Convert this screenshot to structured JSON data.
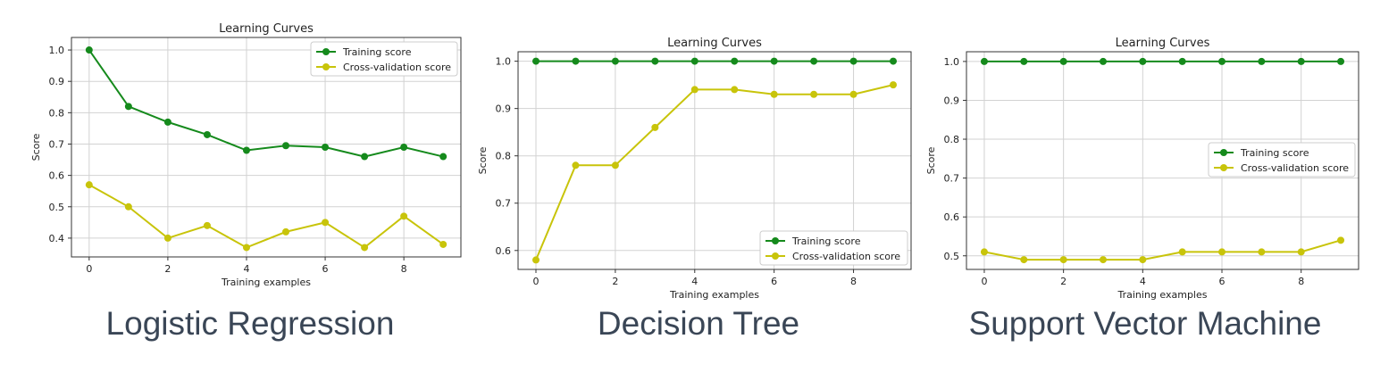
{
  "colors": {
    "training": "#158a1c",
    "cv": "#c8c40a"
  },
  "chart_data": [
    {
      "type": "line",
      "title": "Learning Curves",
      "xlabel": "Training examples",
      "ylabel": "Score",
      "caption": "Logistic Regression",
      "x": [
        0,
        1,
        2,
        3,
        4,
        5,
        6,
        7,
        8,
        9
      ],
      "xlim": [
        -0.45,
        9.45
      ],
      "ylim": [
        0.34,
        1.04
      ],
      "xticks": [
        0,
        2,
        4,
        6,
        8
      ],
      "yticks": [
        0.4,
        0.5,
        0.6,
        0.7,
        0.8,
        0.9,
        1.0
      ],
      "grid": true,
      "legend": "top-right",
      "series": [
        {
          "name": "Training score",
          "values": [
            1.0,
            0.82,
            0.77,
            0.73,
            0.68,
            0.695,
            0.69,
            0.66,
            0.69,
            0.66
          ]
        },
        {
          "name": "Cross-validation score",
          "values": [
            0.57,
            0.5,
            0.4,
            0.44,
            0.37,
            0.42,
            0.45,
            0.37,
            0.47,
            0.38
          ]
        }
      ]
    },
    {
      "type": "line",
      "title": "Learning Curves",
      "xlabel": "Training examples",
      "ylabel": "Score",
      "caption": "Decision Tree",
      "x": [
        0,
        1,
        2,
        3,
        4,
        5,
        6,
        7,
        8,
        9
      ],
      "xlim": [
        -0.45,
        9.45
      ],
      "ylim": [
        0.56,
        1.02
      ],
      "xticks": [
        0,
        2,
        4,
        6,
        8
      ],
      "yticks": [
        0.6,
        0.7,
        0.8,
        0.9,
        1.0
      ],
      "grid": true,
      "legend": "bottom-right",
      "series": [
        {
          "name": "Training score",
          "values": [
            1.0,
            1.0,
            1.0,
            1.0,
            1.0,
            1.0,
            1.0,
            1.0,
            1.0,
            1.0
          ]
        },
        {
          "name": "Cross-validation score",
          "values": [
            0.58,
            0.78,
            0.78,
            0.86,
            0.94,
            0.94,
            0.93,
            0.93,
            0.93,
            0.95
          ]
        }
      ]
    },
    {
      "type": "line",
      "title": "Learning Curves",
      "xlabel": "Training examples",
      "ylabel": "Score",
      "caption": "Support Vector Machine",
      "x": [
        0,
        1,
        2,
        3,
        4,
        5,
        6,
        7,
        8,
        9
      ],
      "xlim": [
        -0.45,
        9.45
      ],
      "ylim": [
        0.465,
        1.025
      ],
      "xticks": [
        0,
        2,
        4,
        6,
        8
      ],
      "yticks": [
        0.5,
        0.6,
        0.7,
        0.8,
        0.9,
        1.0
      ],
      "grid": true,
      "legend": "center-right",
      "series": [
        {
          "name": "Training score",
          "values": [
            1.0,
            1.0,
            1.0,
            1.0,
            1.0,
            1.0,
            1.0,
            1.0,
            1.0,
            1.0
          ]
        },
        {
          "name": "Cross-validation score",
          "values": [
            0.51,
            0.49,
            0.49,
            0.49,
            0.49,
            0.51,
            0.51,
            0.51,
            0.51,
            0.54
          ]
        }
      ]
    }
  ]
}
